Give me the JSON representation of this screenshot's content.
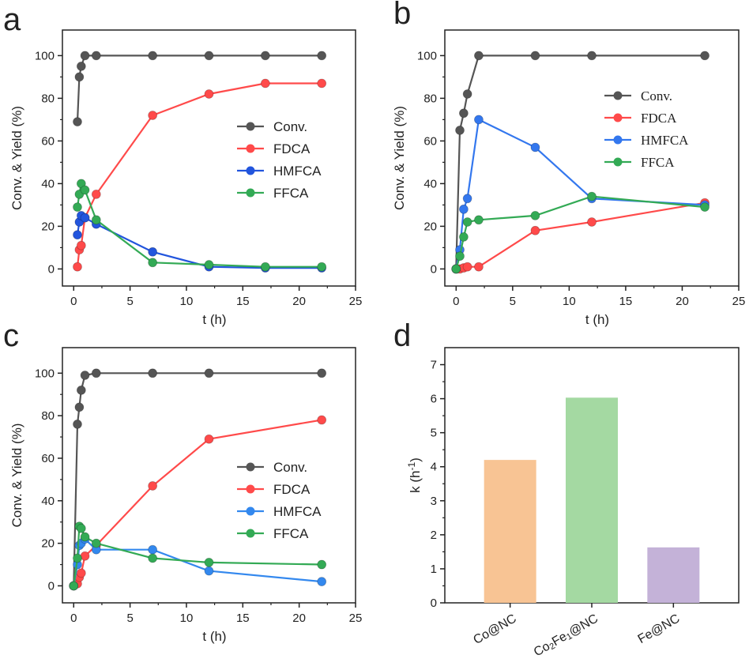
{
  "figure": {
    "panels": [
      {
        "letter": "a"
      },
      {
        "letter": "b"
      },
      {
        "letter": "c"
      },
      {
        "letter": "d"
      }
    ]
  },
  "chart_data": [
    {
      "panel": "a",
      "type": "line",
      "xlabel": "t (h)",
      "ylabel": "Conv. & Yield (%)",
      "xlim": [
        -1,
        25
      ],
      "ylim": [
        -8,
        112
      ],
      "xticks": [
        0,
        5,
        10,
        15,
        20,
        25
      ],
      "yticks": [
        0,
        20,
        40,
        60,
        80,
        100
      ],
      "legend_position": "middle-right",
      "series": [
        {
          "name": "Conv.",
          "color": "#555555",
          "x": [
            0.33,
            0.5,
            0.67,
            1,
            2,
            7,
            12,
            17,
            22
          ],
          "y": [
            69,
            90,
            95,
            100,
            100,
            100,
            100,
            100,
            100
          ]
        },
        {
          "name": "FDCA",
          "color": "#ff4a4a",
          "x": [
            0.33,
            0.5,
            0.67,
            1,
            2,
            7,
            12,
            17,
            22
          ],
          "y": [
            1,
            9,
            11,
            24,
            35,
            72,
            82,
            87,
            87
          ]
        },
        {
          "name": "HMFCA",
          "color": "#2255dd",
          "x": [
            0.33,
            0.5,
            0.67,
            1,
            2,
            7,
            12,
            17,
            22
          ],
          "y": [
            16,
            22,
            25,
            24,
            21,
            8,
            1,
            0.5,
            0.5
          ]
        },
        {
          "name": "FFCA",
          "color": "#33aa55",
          "x": [
            0.33,
            0.5,
            0.67,
            1,
            2,
            7,
            12,
            17,
            22
          ],
          "y": [
            29,
            35,
            40,
            37,
            23,
            3,
            2,
            1,
            1
          ]
        }
      ]
    },
    {
      "panel": "b",
      "type": "line",
      "xlabel": "t (h)",
      "ylabel": "Conv. & Yield (%)",
      "xlim": [
        -1,
        25
      ],
      "ylim": [
        -8,
        112
      ],
      "xticks": [
        0,
        5,
        10,
        15,
        20,
        25
      ],
      "yticks": [
        0,
        20,
        40,
        60,
        80,
        100
      ],
      "legend_position": "top-right",
      "series": [
        {
          "name": "Conv.",
          "color": "#555555",
          "x": [
            0,
            0.33,
            0.67,
            1,
            2,
            7,
            12,
            22
          ],
          "y": [
            0,
            65,
            73,
            82,
            100,
            100,
            100,
            100
          ]
        },
        {
          "name": "FDCA",
          "color": "#ff4a4a",
          "x": [
            0,
            0.33,
            0.67,
            1,
            2,
            7,
            12,
            22
          ],
          "y": [
            0,
            0,
            0.5,
            1,
            1,
            18,
            22,
            31
          ]
        },
        {
          "name": "HMFCA",
          "color": "#3377ee",
          "x": [
            0,
            0.33,
            0.67,
            1,
            2,
            7,
            12,
            22
          ],
          "y": [
            0,
            9,
            28,
            33,
            70,
            57,
            33,
            30
          ]
        },
        {
          "name": "FFCA",
          "color": "#33aa55",
          "x": [
            0,
            0.33,
            0.67,
            1,
            2,
            7,
            12,
            22
          ],
          "y": [
            0,
            6,
            15,
            22,
            23,
            25,
            34,
            29
          ]
        }
      ]
    },
    {
      "panel": "c",
      "type": "line",
      "xlabel": "t (h)",
      "ylabel": "Conv. & Yield (%)",
      "xlim": [
        -1,
        25
      ],
      "ylim": [
        -8,
        112
      ],
      "xticks": [
        0,
        5,
        10,
        15,
        20,
        25
      ],
      "yticks": [
        0,
        20,
        40,
        60,
        80,
        100
      ],
      "legend_position": "middle-right",
      "series": [
        {
          "name": "Conv.",
          "color": "#555555",
          "x": [
            0,
            0.33,
            0.5,
            0.67,
            1,
            2,
            7,
            12,
            22
          ],
          "y": [
            0,
            76,
            84,
            92,
            99,
            100,
            100,
            100,
            100
          ]
        },
        {
          "name": "FDCA",
          "color": "#ff4a4a",
          "x": [
            0,
            0.33,
            0.5,
            0.67,
            1,
            2,
            7,
            12,
            22
          ],
          "y": [
            0,
            1,
            4,
            6,
            14,
            19,
            47,
            69,
            78
          ]
        },
        {
          "name": "HMFCA",
          "color": "#3388ee",
          "x": [
            0,
            0.33,
            0.5,
            0.67,
            1,
            2,
            7,
            12,
            22
          ],
          "y": [
            0,
            10,
            19,
            20,
            22,
            17,
            17,
            7,
            2
          ]
        },
        {
          "name": "FFCA",
          "color": "#33aa55",
          "x": [
            0,
            0.33,
            0.5,
            0.67,
            1,
            2,
            7,
            12,
            22
          ],
          "y": [
            0,
            13,
            28,
            27,
            23,
            20,
            13,
            11,
            10
          ]
        }
      ]
    },
    {
      "panel": "d",
      "type": "bar",
      "ylabel": "k (h-1)",
      "ylabel_main": "k (h",
      "ylabel_sup": "-1",
      "ylabel_close": ")",
      "ylim": [
        0,
        7.5
      ],
      "yticks": [
        0,
        1,
        2,
        3,
        4,
        5,
        6,
        7
      ],
      "categories": [
        "Co@NC",
        "Co2Fe1@NC",
        "Fe@NC"
      ],
      "category_parts": [
        [
          {
            "t": "Co@NC",
            "s": "n"
          }
        ],
        [
          {
            "t": "Co",
            "s": "n"
          },
          {
            "t": "2",
            "s": "sub"
          },
          {
            "t": "Fe",
            "s": "n"
          },
          {
            "t": "1",
            "s": "sub"
          },
          {
            "t": "@NC",
            "s": "n"
          }
        ],
        [
          {
            "t": "Fe@NC",
            "s": "n"
          }
        ]
      ],
      "values": [
        4.2,
        6.03,
        1.63
      ],
      "colors": [
        "#f8c494",
        "#a4d9a2",
        "#c4b2d8"
      ]
    }
  ]
}
